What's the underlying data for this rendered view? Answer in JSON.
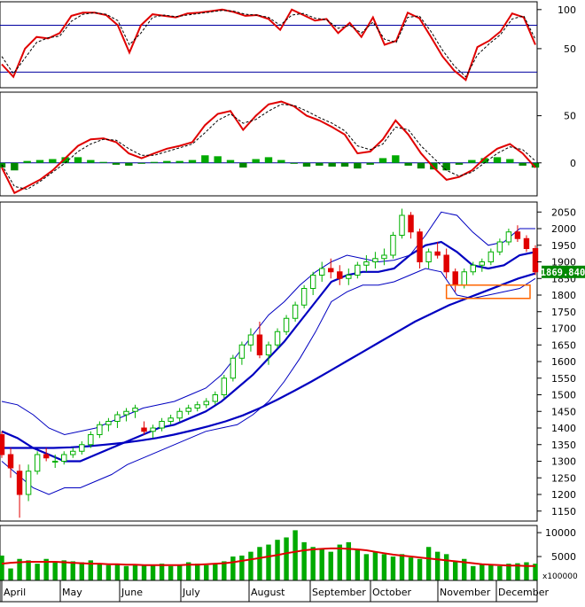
{
  "chart_data": [
    {
      "panel": "stochastic",
      "type": "line",
      "yticks": [
        50,
        100
      ],
      "ylim": [
        0,
        110
      ],
      "overbought": 80,
      "oversold": 20,
      "series": [
        {
          "color": "#e00000",
          "style": "solid",
          "values": [
            30,
            14,
            50,
            65,
            63,
            70,
            92,
            96,
            96,
            93,
            80,
            45,
            80,
            94,
            92,
            90,
            95,
            96,
            98,
            100,
            97,
            92,
            93,
            88,
            74,
            100,
            93,
            86,
            88,
            70,
            83,
            65,
            90,
            55,
            60,
            96,
            89,
            65,
            40,
            22,
            10,
            52,
            60,
            72,
            95,
            90,
            55
          ]
        },
        {
          "color": "#000000",
          "style": "dashed",
          "values": [
            40,
            18,
            38,
            58,
            64,
            66,
            85,
            94,
            96,
            94,
            86,
            55,
            70,
            90,
            93,
            91,
            93,
            95,
            97,
            99,
            98,
            94,
            93,
            90,
            80,
            93,
            95,
            89,
            87,
            76,
            80,
            70,
            84,
            62,
            58,
            90,
            92,
            72,
            48,
            28,
            14,
            42,
            56,
            68,
            88,
            92,
            62
          ]
        }
      ]
    },
    {
      "panel": "macd",
      "type": "line",
      "yticks": [
        0,
        50
      ],
      "ylim": [
        -35,
        75
      ],
      "series": [
        {
          "color": "#e00000",
          "style": "solid",
          "values": [
            -5,
            -32,
            -25,
            -18,
            -8,
            5,
            18,
            25,
            26,
            22,
            10,
            5,
            10,
            15,
            18,
            22,
            40,
            52,
            55,
            35,
            50,
            62,
            65,
            60,
            50,
            45,
            38,
            30,
            10,
            12,
            25,
            45,
            30,
            10,
            -5,
            -18,
            -15,
            -8,
            5,
            15,
            20,
            10,
            -5
          ]
        },
        {
          "color": "#000000",
          "style": "dashed",
          "values": [
            -2,
            -25,
            -28,
            -20,
            -10,
            0,
            12,
            20,
            25,
            24,
            15,
            8,
            8,
            12,
            16,
            20,
            32,
            45,
            52,
            42,
            46,
            55,
            62,
            61,
            55,
            48,
            42,
            34,
            18,
            14,
            20,
            38,
            35,
            18,
            5,
            -8,
            -14,
            -10,
            0,
            10,
            17,
            14,
            2
          ]
        }
      ],
      "histogram": {
        "positive_color": "#00aa00",
        "negative_color": "#008800",
        "values": [
          -5,
          -8,
          2,
          3,
          4,
          6,
          6,
          3,
          1,
          -2,
          -3,
          -1,
          1,
          2,
          2,
          3,
          8,
          7,
          3,
          -5,
          4,
          6,
          3,
          -1,
          -4,
          -3,
          -4,
          -4,
          -6,
          -2,
          5,
          8,
          -3,
          -6,
          -7,
          -8,
          -2,
          3,
          5,
          6,
          4,
          -3,
          -5
        ]
      }
    },
    {
      "panel": "price",
      "type": "candlestick",
      "yticks": [
        1150,
        1200,
        1250,
        1300,
        1350,
        1400,
        1450,
        1500,
        1550,
        1600,
        1650,
        1700,
        1750,
        1800,
        1850,
        1900,
        1950,
        2000,
        2050
      ],
      "ylim": [
        1120,
        2080
      ],
      "last_price": "1869.840",
      "ohlc": [
        [
          1380,
          1390,
          1310,
          1320
        ],
        [
          1320,
          1340,
          1250,
          1280
        ],
        [
          1270,
          1290,
          1130,
          1200
        ],
        [
          1200,
          1290,
          1180,
          1270
        ],
        [
          1270,
          1330,
          1260,
          1320
        ],
        [
          1320,
          1340,
          1300,
          1310
        ],
        [
          1300,
          1320,
          1280,
          1300
        ],
        [
          1300,
          1330,
          1290,
          1320
        ],
        [
          1320,
          1340,
          1310,
          1330
        ],
        [
          1330,
          1360,
          1320,
          1350
        ],
        [
          1350,
          1390,
          1340,
          1380
        ],
        [
          1380,
          1420,
          1370,
          1410
        ],
        [
          1410,
          1430,
          1390,
          1420
        ],
        [
          1420,
          1450,
          1400,
          1440
        ],
        [
          1440,
          1460,
          1420,
          1450
        ],
        [
          1450,
          1470,
          1430,
          1460
        ],
        [
          1400,
          1420,
          1380,
          1390
        ],
        [
          1390,
          1410,
          1370,
          1400
        ],
        [
          1400,
          1430,
          1390,
          1420
        ],
        [
          1420,
          1440,
          1410,
          1430
        ],
        [
          1430,
          1460,
          1420,
          1450
        ],
        [
          1450,
          1470,
          1440,
          1460
        ],
        [
          1460,
          1480,
          1450,
          1470
        ],
        [
          1470,
          1490,
          1460,
          1480
        ],
        [
          1480,
          1510,
          1470,
          1500
        ],
        [
          1500,
          1560,
          1490,
          1550
        ],
        [
          1550,
          1620,
          1540,
          1610
        ],
        [
          1610,
          1660,
          1590,
          1650
        ],
        [
          1650,
          1700,
          1630,
          1680
        ],
        [
          1680,
          1720,
          1610,
          1620
        ],
        [
          1620,
          1660,
          1590,
          1650
        ],
        [
          1650,
          1700,
          1640,
          1690
        ],
        [
          1690,
          1740,
          1680,
          1730
        ],
        [
          1730,
          1780,
          1720,
          1770
        ],
        [
          1770,
          1830,
          1760,
          1820
        ],
        [
          1820,
          1870,
          1800,
          1860
        ],
        [
          1860,
          1900,
          1840,
          1880
        ],
        [
          1880,
          1910,
          1850,
          1870
        ],
        [
          1870,
          1890,
          1830,
          1850
        ],
        [
          1850,
          1880,
          1830,
          1860
        ],
        [
          1860,
          1900,
          1850,
          1890
        ],
        [
          1890,
          1920,
          1870,
          1900
        ],
        [
          1900,
          1930,
          1880,
          1910
        ],
        [
          1910,
          1940,
          1890,
          1920
        ],
        [
          1920,
          1990,
          1910,
          1980
        ],
        [
          1980,
          2060,
          1970,
          2040
        ],
        [
          2040,
          2050,
          1970,
          1990
        ],
        [
          1990,
          2000,
          1880,
          1900
        ],
        [
          1900,
          1940,
          1880,
          1930
        ],
        [
          1930,
          1960,
          1910,
          1920
        ],
        [
          1920,
          1940,
          1850,
          1870
        ],
        [
          1870,
          1880,
          1810,
          1830
        ],
        [
          1830,
          1880,
          1820,
          1870
        ],
        [
          1870,
          1900,
          1860,
          1890
        ],
        [
          1890,
          1910,
          1870,
          1900
        ],
        [
          1900,
          1940,
          1890,
          1930
        ],
        [
          1930,
          1970,
          1920,
          1960
        ],
        [
          1960,
          2000,
          1950,
          1990
        ],
        [
          1990,
          2010,
          1960,
          1970
        ],
        [
          1970,
          1980,
          1930,
          1940
        ],
        [
          1940,
          1950,
          1860,
          1870
        ]
      ],
      "bands": {
        "color": "#0000c0",
        "upper": [
          1480,
          1470,
          1440,
          1400,
          1380,
          1390,
          1400,
          1420,
          1440,
          1460,
          1470,
          1480,
          1500,
          1520,
          1560,
          1620,
          1680,
          1740,
          1780,
          1830,
          1870,
          1900,
          1920,
          1910,
          1900,
          1905,
          1920,
          1980,
          2050,
          2040,
          1990,
          1950,
          1960,
          2000,
          2000
        ],
        "middle": [
          1390,
          1370,
          1340,
          1320,
          1300,
          1300,
          1320,
          1340,
          1360,
          1380,
          1400,
          1410,
          1430,
          1450,
          1480,
          1520,
          1560,
          1610,
          1660,
          1720,
          1780,
          1840,
          1860,
          1870,
          1870,
          1880,
          1920,
          1950,
          1960,
          1930,
          1890,
          1880,
          1890,
          1920,
          1930
        ],
        "lower": [
          1300,
          1260,
          1220,
          1200,
          1220,
          1220,
          1240,
          1260,
          1290,
          1310,
          1330,
          1350,
          1370,
          1390,
          1400,
          1410,
          1440,
          1480,
          1540,
          1610,
          1690,
          1780,
          1810,
          1830,
          1830,
          1840,
          1860,
          1880,
          1870,
          1800,
          1790,
          1800,
          1810,
          1820,
          1850
        ]
      },
      "ma200": {
        "color": "#0000c0",
        "values": [
          1340,
          1340,
          1340,
          1340,
          1342,
          1345,
          1350,
          1355,
          1362,
          1370,
          1380,
          1392,
          1405,
          1420,
          1438,
          1460,
          1485,
          1512,
          1540,
          1570,
          1600,
          1630,
          1660,
          1690,
          1720,
          1745,
          1770,
          1790,
          1810,
          1830,
          1850,
          1865
        ]
      },
      "highlight_box": {
        "color": "#ff6600",
        "range": [
          1790,
          1830
        ]
      }
    },
    {
      "panel": "volume",
      "type": "bar",
      "yticks": [
        5000,
        10000
      ],
      "ylim": [
        0,
        11500
      ],
      "scale_label": "x100000",
      "bar_color": "#00aa00",
      "ma_color": "#e00000",
      "values": [
        5200,
        2500,
        4500,
        4200,
        3500,
        4500,
        4000,
        4200,
        4000,
        3800,
        4200,
        3500,
        3200,
        3400,
        3000,
        3300,
        3200,
        3100,
        3500,
        3000,
        3300,
        3800,
        3500,
        3200,
        3600,
        4000,
        5000,
        5200,
        6000,
        7000,
        7500,
        8500,
        9000,
        10500,
        8000,
        7000,
        6500,
        6000,
        7500,
        8000,
        6500,
        5500,
        6000,
        5500,
        5000,
        5500,
        4800,
        4500,
        7000,
        6000,
        5500,
        4000,
        4500,
        3000,
        3500,
        3200,
        3000,
        3500,
        3600,
        3800,
        3500
      ],
      "ma": [
        3500,
        3700,
        3800,
        3900,
        3900,
        3900,
        3900,
        3800,
        3700,
        3600,
        3500,
        3500,
        3400,
        3400,
        3300,
        3300,
        3200,
        3200,
        3200,
        3200,
        3200,
        3300,
        3300,
        3400,
        3500,
        3600,
        3800,
        4100,
        4400,
        4700,
        5000,
        5300,
        5700,
        6000,
        6300,
        6500,
        6600,
        6700,
        6700,
        6600,
        6500,
        6300,
        6000,
        5700,
        5400,
        5200,
        5000,
        4800,
        4600,
        4400,
        4200,
        4000,
        3800,
        3600,
        3400,
        3300,
        3200,
        3100,
        3100,
        3000,
        3000
      ]
    },
    {
      "panel": "x-axis",
      "type": "axis",
      "months": [
        "April",
        "May",
        "June",
        "July",
        "August",
        "September",
        "October",
        "November",
        "December"
      ]
    }
  ]
}
